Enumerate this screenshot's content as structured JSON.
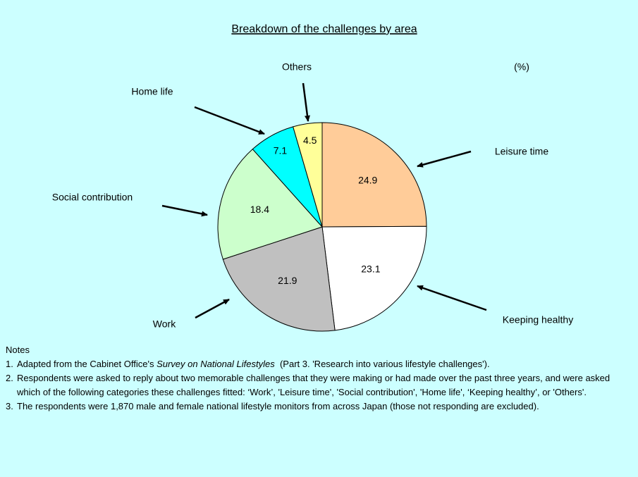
{
  "chart_data": {
    "type": "pie",
    "title": "Breakdown of the challenges by area",
    "unit": "(%)",
    "categories": [
      "Leisure time",
      "Keeping healthy",
      "Work",
      "Social contribution",
      "Home life",
      "Others"
    ],
    "values": [
      24.9,
      23.1,
      21.9,
      18.4,
      7.1,
      4.5
    ],
    "colors": [
      "#ffcc99",
      "#ffffff",
      "#c0c0c0",
      "#ccffcc",
      "#00ffff",
      "#ffff99"
    ]
  },
  "notes": {
    "heading": "Notes",
    "items": [
      {
        "number": "1.",
        "parts": [
          "Adapted from the Cabinet Office's ",
          "Survey on National Lifestyles",
          "  (Part 3. 'Research into various lifestyle challenges')."
        ]
      },
      {
        "number": "2.",
        "parts": [
          "Respondents were asked to reply about two memorable challenges that they were making or had made over the past three years, and were asked which of the following categories these challenges fitted: ‘Work’, 'Leisure time', 'Social contribution', 'Home life', ‘Keeping healthy’, or 'Others'."
        ]
      },
      {
        "number": "3.",
        "parts": [
          "The respondents were 1,870 male and female national lifestyle monitors from across Japan (those not responding are excluded)."
        ]
      }
    ]
  }
}
